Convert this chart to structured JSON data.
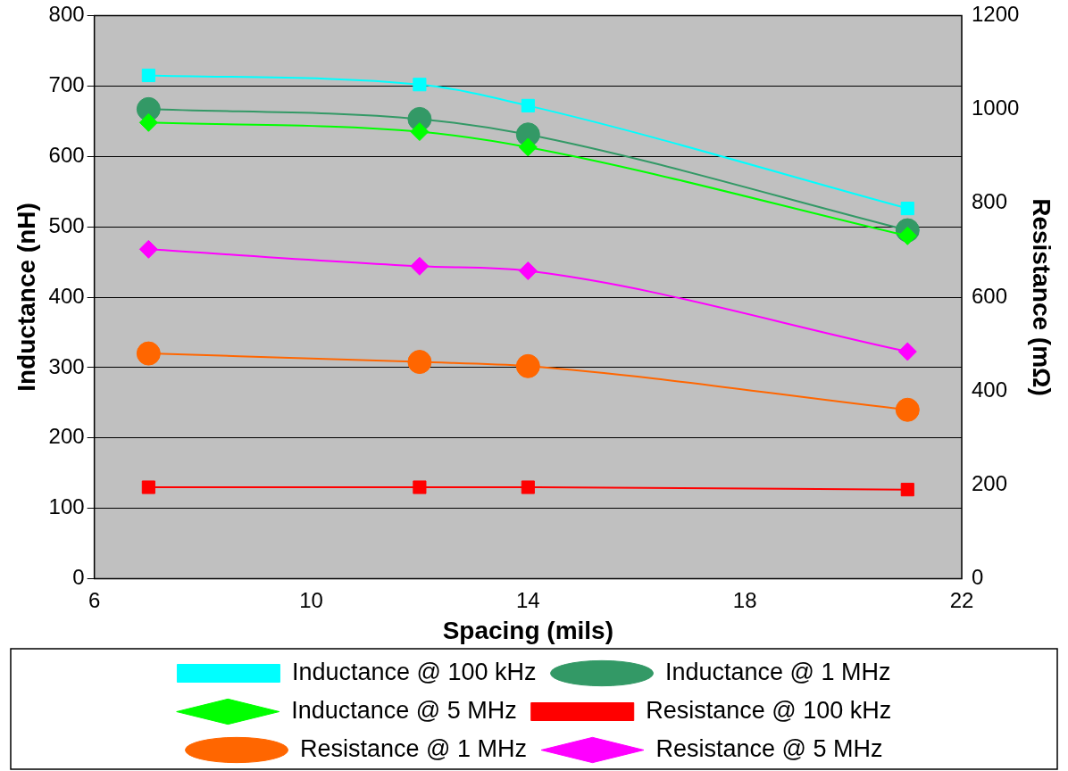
{
  "chart_data": {
    "type": "line",
    "xlabel": "Spacing (mils)",
    "ylabel": "Inductance (nH)",
    "y2label": "Resistance (mΩ)",
    "x": [
      7,
      12,
      14,
      21
    ],
    "series": [
      {
        "name": "Inductance @ 100 kHz",
        "color": "#00ffff",
        "marker": "square",
        "values": [
          715,
          702,
          672,
          526
        ]
      },
      {
        "name": "Inductance @ 1 MHz",
        "color": "#339966",
        "marker": "circle",
        "values": [
          667,
          653,
          631,
          495
        ]
      },
      {
        "name": "Inductance @ 5 MHz",
        "color": "#00ff00",
        "marker": "diamond",
        "values": [
          648,
          635,
          613,
          487
        ]
      },
      {
        "name": "Resistance @ 100 kHz",
        "color": "#ff0000",
        "marker": "square",
        "axis": "y2",
        "values": [
          195,
          195,
          195,
          190
        ]
      },
      {
        "name": "Resistance @ 1 MHz",
        "color": "#ff6600",
        "marker": "circle",
        "axis": "y2",
        "values": [
          480,
          462,
          453,
          360
        ]
      },
      {
        "name": "Resistance @ 5 MHz",
        "color": "#ff00ff",
        "marker": "diamond",
        "axis": "y2",
        "values": [
          702,
          666,
          656,
          484
        ]
      }
    ],
    "xlim": [
      6,
      22
    ],
    "xticks": [
      6,
      10,
      14,
      18,
      22
    ],
    "ylim": [
      0,
      800
    ],
    "yticks": [
      0,
      100,
      200,
      300,
      400,
      500,
      600,
      700,
      800
    ],
    "y2lim": [
      0,
      1200
    ],
    "y2ticks": [
      0,
      200,
      400,
      600,
      800,
      1000,
      1200
    ],
    "grid": "y",
    "legend": "bottom"
  }
}
